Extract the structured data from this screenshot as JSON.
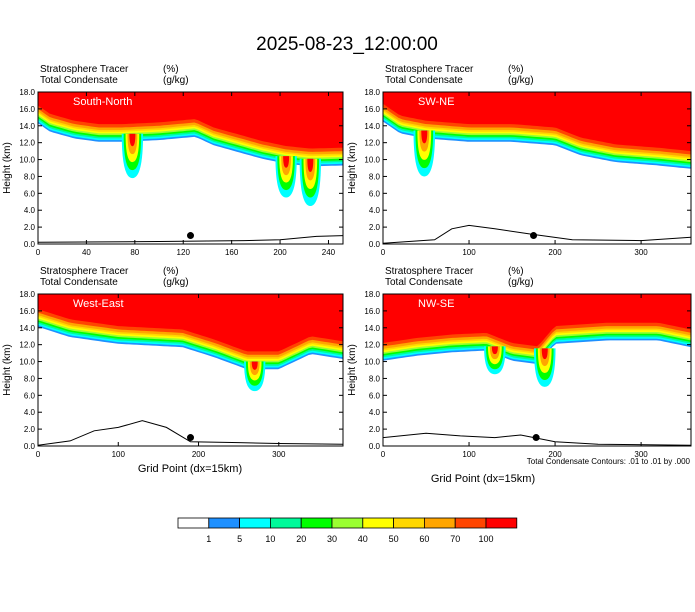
{
  "figure": {
    "title": "2025-08-23_12:00:00",
    "footnote": "Total Condensate Contours: .01 to .01 by .000",
    "xlabel": "Grid Point (dx=15km)",
    "ylabel": "Height (km)"
  },
  "colors": {
    "levels": [
      "#ffffff",
      "#1e90ff",
      "#00ffff",
      "#00fa9a",
      "#00ff00",
      "#9aff32",
      "#ffff00",
      "#ffd700",
      "#ffa500",
      "#ff4500",
      "#ff0000"
    ]
  },
  "chart_data": [
    {
      "type": "heatmap",
      "title": "South-North",
      "subtitle_left": "Stratosphere Tracer",
      "subtitle_left_unit": "(%)",
      "subtitle_left2": "Total Condensate",
      "subtitle_left2_unit": "(g/kg)",
      "xlabel": "",
      "ylabel": "Height (km)",
      "xlim": [
        0,
        252
      ],
      "ylim": [
        0,
        18
      ],
      "xticks": [
        0,
        40,
        80,
        120,
        160,
        200,
        240
      ],
      "yticks": [
        "0.0",
        "2.0",
        "4.0",
        "6.0",
        "8.0",
        "10.0",
        "12.0",
        "14.0",
        "16.0",
        "18.0"
      ],
      "tracer_base_profile": [
        [
          0,
          15.2
        ],
        [
          10,
          14.2
        ],
        [
          30,
          13.4
        ],
        [
          50,
          13.0
        ],
        [
          70,
          13.0
        ],
        [
          100,
          13.2
        ],
        [
          130,
          13.6
        ],
        [
          145,
          12.6
        ],
        [
          165,
          11.8
        ],
        [
          185,
          11.0
        ],
        [
          205,
          10.4
        ],
        [
          225,
          10.1
        ],
        [
          252,
          10.2
        ]
      ],
      "plumes": [
        {
          "x": 78,
          "bottom": 7.8
        },
        {
          "x": 205,
          "bottom": 5.5
        },
        {
          "x": 225,
          "bottom": 4.5
        }
      ],
      "terrain": [
        [
          0,
          0.2
        ],
        [
          100,
          0.3
        ],
        [
          170,
          0.4
        ],
        [
          200,
          0.5
        ],
        [
          230,
          0.9
        ],
        [
          252,
          1.0
        ]
      ],
      "marker": {
        "x": 126,
        "y": 1.0
      }
    },
    {
      "type": "heatmap",
      "title": "SW-NE",
      "subtitle_left": "Stratosphere Tracer",
      "subtitle_left_unit": "(%)",
      "subtitle_left2": "Total Condensate",
      "subtitle_left2_unit": "(g/kg)",
      "xlabel": "",
      "ylabel": "Height (km)",
      "xlim": [
        0,
        358
      ],
      "ylim": [
        0,
        18
      ],
      "xticks": [
        0,
        100,
        200,
        300
      ],
      "yticks": [
        "0.0",
        "2.0",
        "4.0",
        "6.0",
        "8.0",
        "10.0",
        "12.0",
        "14.0",
        "16.0",
        "18.0"
      ],
      "tracer_base_profile": [
        [
          0,
          15.4
        ],
        [
          20,
          14.0
        ],
        [
          50,
          13.4
        ],
        [
          100,
          13.0
        ],
        [
          150,
          13.0
        ],
        [
          200,
          12.6
        ],
        [
          230,
          11.4
        ],
        [
          270,
          10.6
        ],
        [
          320,
          10.2
        ],
        [
          358,
          9.8
        ]
      ],
      "plumes": [
        {
          "x": 48,
          "bottom": 8.0
        }
      ],
      "terrain": [
        [
          0,
          0.1
        ],
        [
          60,
          0.5
        ],
        [
          80,
          1.8
        ],
        [
          100,
          2.2
        ],
        [
          130,
          1.8
        ],
        [
          170,
          1.2
        ],
        [
          220,
          0.5
        ],
        [
          300,
          0.4
        ],
        [
          358,
          0.8
        ]
      ],
      "marker": {
        "x": 175,
        "y": 1.0
      }
    },
    {
      "type": "heatmap",
      "title": "West-East",
      "subtitle_left": "Stratosphere Tracer",
      "subtitle_left_unit": "(%)",
      "subtitle_left2": "Total Condensate",
      "subtitle_left2_unit": "(g/kg)",
      "xlabel": "Grid Point (dx=15km)",
      "ylabel": "Height (km)",
      "xlim": [
        0,
        380
      ],
      "ylim": [
        0,
        18
      ],
      "xticks": [
        0,
        100,
        200,
        300
      ],
      "yticks": [
        "0.0",
        "2.0",
        "4.0",
        "6.0",
        "8.0",
        "10.0",
        "12.0",
        "14.0",
        "16.0",
        "18.0"
      ],
      "tracer_base_profile": [
        [
          0,
          15.0
        ],
        [
          40,
          13.8
        ],
        [
          100,
          13.0
        ],
        [
          180,
          12.6
        ],
        [
          220,
          11.4
        ],
        [
          260,
          10.0
        ],
        [
          300,
          10.0
        ],
        [
          340,
          11.8
        ],
        [
          380,
          11.2
        ]
      ],
      "plumes": [
        {
          "x": 270,
          "bottom": 6.5
        }
      ],
      "terrain": [
        [
          0,
          0.1
        ],
        [
          40,
          0.6
        ],
        [
          70,
          1.8
        ],
        [
          100,
          2.2
        ],
        [
          130,
          3.0
        ],
        [
          160,
          2.2
        ],
        [
          190,
          0.5
        ],
        [
          250,
          0.4
        ],
        [
          300,
          0.3
        ],
        [
          380,
          0.2
        ]
      ],
      "marker": {
        "x": 190,
        "y": 1.0
      }
    },
    {
      "type": "heatmap",
      "title": "NW-SE",
      "subtitle_left": "Stratosphere Tracer",
      "subtitle_left_unit": "(%)",
      "subtitle_left2": "Total Condensate",
      "subtitle_left2_unit": "(g/kg)",
      "xlabel": "",
      "ylabel": "Height (km)",
      "xlim": [
        0,
        358
      ],
      "ylim": [
        0,
        18
      ],
      "xticks": [
        0,
        100,
        200,
        300
      ],
      "yticks": [
        "0.0",
        "2.0",
        "4.0",
        "6.0",
        "8.0",
        "10.0",
        "12.0",
        "14.0",
        "16.0",
        "18.0"
      ],
      "tracer_base_profile": [
        [
          0,
          11.0
        ],
        [
          40,
          11.6
        ],
        [
          80,
          12.0
        ],
        [
          120,
          12.2
        ],
        [
          150,
          11.0
        ],
        [
          180,
          10.6
        ],
        [
          200,
          13.0
        ],
        [
          260,
          13.4
        ],
        [
          320,
          13.4
        ],
        [
          358,
          12.6
        ]
      ],
      "plumes": [
        {
          "x": 188,
          "bottom": 7.0
        },
        {
          "x": 130,
          "bottom": 8.5
        }
      ],
      "terrain": [
        [
          0,
          1.0
        ],
        [
          50,
          1.5
        ],
        [
          90,
          1.2
        ],
        [
          130,
          1.0
        ],
        [
          160,
          1.3
        ],
        [
          200,
          0.5
        ],
        [
          250,
          0.2
        ],
        [
          358,
          0.1
        ]
      ],
      "marker": {
        "x": 178,
        "y": 1.0
      }
    }
  ],
  "legend": {
    "labels": [
      "1",
      "5",
      "10",
      "20",
      "30",
      "40",
      "50",
      "60",
      "70",
      "100"
    ]
  }
}
